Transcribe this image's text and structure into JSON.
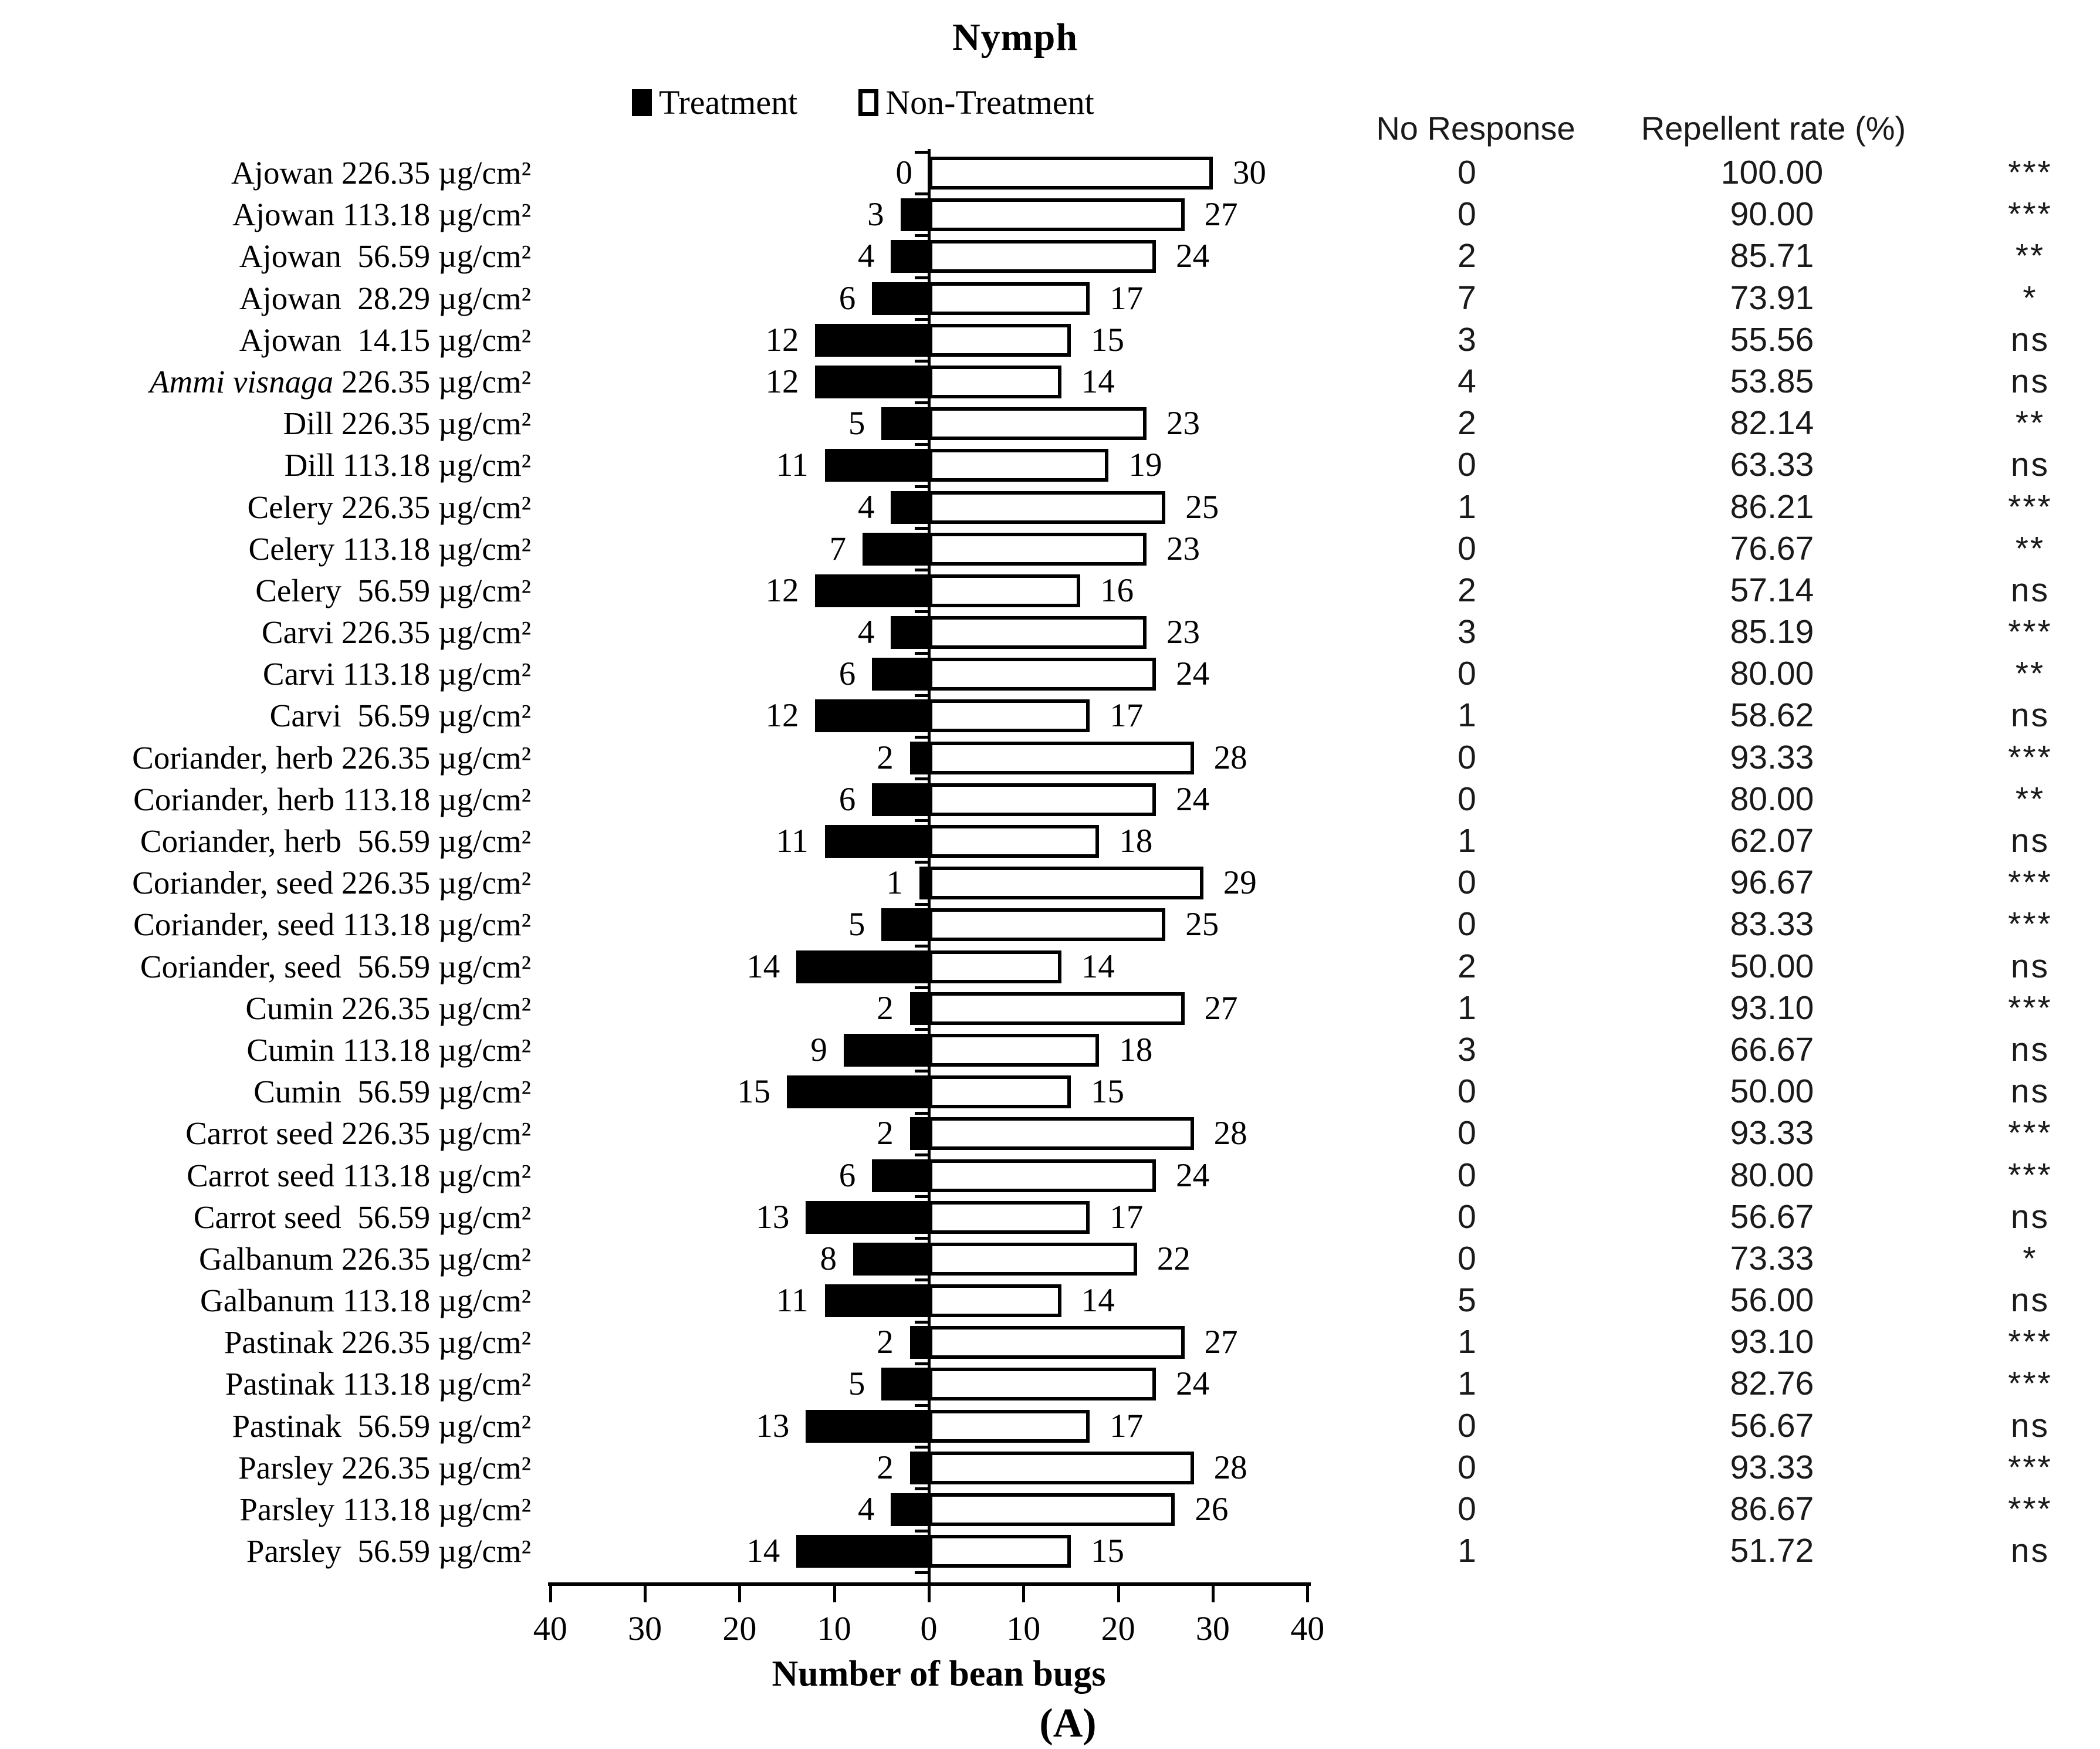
{
  "figure": {
    "caption": "(A)",
    "columns": {
      "no_response": "No Response",
      "repellent_rate": "Repellent rate (%)"
    }
  },
  "chart_data": {
    "type": "bar",
    "orientation": "horizontal-diverging",
    "title": "Nymph",
    "xlabel": "Number of bean bugs",
    "xlim": [
      -40,
      40
    ],
    "x_ticks": [
      40,
      30,
      20,
      10,
      0,
      10,
      20,
      30,
      40
    ],
    "grid": false,
    "legend_position": "top",
    "colors": {
      "treatment": "#000000",
      "non_treatment": "#ffffff",
      "outline": "#000000"
    },
    "categories": [
      {
        "name": "Ajowan",
        "conc": "226.35 µg/cm²"
      },
      {
        "name": "Ajowan",
        "conc": "113.18 µg/cm²"
      },
      {
        "name": "Ajowan",
        "conc": " 56.59 µg/cm²"
      },
      {
        "name": "Ajowan",
        "conc": " 28.29 µg/cm²"
      },
      {
        "name": "Ajowan",
        "conc": " 14.15 µg/cm²"
      },
      {
        "name": "Ammi visnaga",
        "conc": "226.35 µg/cm²",
        "italic": true
      },
      {
        "name": "Dill",
        "conc": "226.35 µg/cm²"
      },
      {
        "name": "Dill",
        "conc": "113.18 µg/cm²"
      },
      {
        "name": "Celery",
        "conc": "226.35 µg/cm²"
      },
      {
        "name": "Celery",
        "conc": "113.18 µg/cm²"
      },
      {
        "name": "Celery",
        "conc": " 56.59 µg/cm²"
      },
      {
        "name": "Carvi",
        "conc": "226.35 µg/cm²"
      },
      {
        "name": "Carvi",
        "conc": "113.18 µg/cm²"
      },
      {
        "name": "Carvi",
        "conc": " 56.59 µg/cm²"
      },
      {
        "name": "Coriander, herb",
        "conc": "226.35 µg/cm²"
      },
      {
        "name": "Coriander, herb",
        "conc": "113.18 µg/cm²"
      },
      {
        "name": "Coriander, herb",
        "conc": " 56.59 µg/cm²"
      },
      {
        "name": "Coriander, seed",
        "conc": "226.35 µg/cm²"
      },
      {
        "name": "Coriander, seed",
        "conc": "113.18 µg/cm²"
      },
      {
        "name": "Coriander, seed",
        "conc": " 56.59 µg/cm²"
      },
      {
        "name": "Cumin",
        "conc": "226.35 µg/cm²"
      },
      {
        "name": "Cumin",
        "conc": "113.18 µg/cm²"
      },
      {
        "name": "Cumin",
        "conc": " 56.59 µg/cm²"
      },
      {
        "name": "Carrot seed",
        "conc": "226.35 µg/cm²"
      },
      {
        "name": "Carrot seed",
        "conc": "113.18 µg/cm²"
      },
      {
        "name": "Carrot seed",
        "conc": " 56.59 µg/cm²"
      },
      {
        "name": "Galbanum",
        "conc": "226.35 µg/cm²"
      },
      {
        "name": "Galbanum",
        "conc": "113.18 µg/cm²"
      },
      {
        "name": "Pastinak",
        "conc": "226.35 µg/cm²"
      },
      {
        "name": "Pastinak",
        "conc": "113.18 µg/cm²"
      },
      {
        "name": "Pastinak",
        "conc": " 56.59 µg/cm²"
      },
      {
        "name": "Parsley",
        "conc": "226.35 µg/cm²"
      },
      {
        "name": "Parsley",
        "conc": "113.18 µg/cm²"
      },
      {
        "name": "Parsley",
        "conc": " 56.59 µg/cm²"
      }
    ],
    "series": [
      {
        "name": "Treatment",
        "values": [
          0,
          3,
          4,
          6,
          12,
          12,
          5,
          11,
          4,
          7,
          12,
          4,
          6,
          12,
          2,
          6,
          11,
          1,
          5,
          14,
          2,
          9,
          15,
          2,
          6,
          13,
          8,
          11,
          2,
          5,
          13,
          2,
          4,
          14
        ]
      },
      {
        "name": "Non-Treatment",
        "values": [
          30,
          27,
          24,
          17,
          15,
          14,
          23,
          19,
          25,
          23,
          16,
          23,
          24,
          17,
          28,
          24,
          18,
          29,
          25,
          14,
          27,
          18,
          15,
          28,
          24,
          17,
          22,
          14,
          27,
          24,
          17,
          28,
          26,
          15
        ]
      }
    ],
    "annotations": {
      "no_response": [
        0,
        0,
        2,
        7,
        3,
        4,
        2,
        0,
        1,
        0,
        2,
        3,
        0,
        1,
        0,
        0,
        1,
        0,
        0,
        2,
        1,
        3,
        0,
        0,
        0,
        0,
        0,
        5,
        1,
        1,
        0,
        0,
        0,
        1
      ],
      "repellent_rate": [
        "100.00",
        "90.00",
        "85.71",
        "73.91",
        "55.56",
        "53.85",
        "82.14",
        "63.33",
        "86.21",
        "76.67",
        "57.14",
        "85.19",
        "80.00",
        "58.62",
        "93.33",
        "80.00",
        "62.07",
        "96.67",
        "83.33",
        "50.00",
        "93.10",
        "66.67",
        "50.00",
        "93.33",
        "80.00",
        "56.67",
        "73.33",
        "56.00",
        "93.10",
        "82.76",
        "56.67",
        "93.33",
        "86.67",
        "51.72"
      ],
      "significance": [
        "***",
        "***",
        "**",
        "*",
        "ns",
        "ns",
        "**",
        "ns",
        "***",
        "**",
        "ns",
        "***",
        "**",
        "ns",
        "***",
        "**",
        "ns",
        "***",
        "***",
        "ns",
        "***",
        "ns",
        "ns",
        "***",
        "***",
        "ns",
        "*",
        "ns",
        "***",
        "***",
        "ns",
        "***",
        "***",
        "ns"
      ]
    }
  }
}
